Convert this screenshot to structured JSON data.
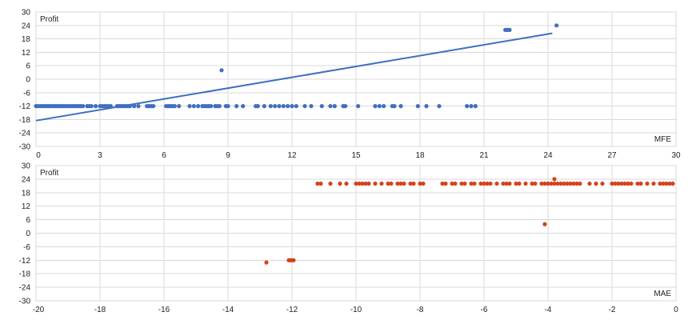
{
  "chart_data": [
    {
      "type": "scatter",
      "title": "",
      "ylabel": "Profit",
      "xlabel": "MFE",
      "xlim": [
        0,
        30
      ],
      "ylim": [
        -30,
        30
      ],
      "x_ticks": [
        "0",
        "3",
        "6",
        "9",
        "12",
        "15",
        "18",
        "21",
        "24",
        "27",
        "30"
      ],
      "y_ticks": [
        "30",
        "24",
        "18",
        "12",
        "6",
        "0",
        "-6",
        "-12",
        "-18",
        "-24",
        "-30"
      ],
      "grid": true,
      "legend": "none",
      "series": [
        {
          "color": "#3f6fc0",
          "points": [
            [
              0.0,
              -12
            ],
            [
              0.1,
              -12
            ],
            [
              0.2,
              -12
            ],
            [
              0.3,
              -12
            ],
            [
              0.4,
              -12
            ],
            [
              0.5,
              -12
            ],
            [
              0.6,
              -12
            ],
            [
              0.7,
              -12
            ],
            [
              0.8,
              -12
            ],
            [
              0.9,
              -12
            ],
            [
              1.0,
              -12
            ],
            [
              1.1,
              -12
            ],
            [
              1.2,
              -12
            ],
            [
              1.3,
              -12
            ],
            [
              1.4,
              -12
            ],
            [
              1.5,
              -12
            ],
            [
              1.6,
              -12
            ],
            [
              1.7,
              -12
            ],
            [
              1.8,
              -12
            ],
            [
              1.9,
              -12
            ],
            [
              2.0,
              -12
            ],
            [
              2.1,
              -12
            ],
            [
              2.2,
              -12
            ],
            [
              2.4,
              -12
            ],
            [
              2.5,
              -12
            ],
            [
              2.6,
              -12
            ],
            [
              2.8,
              -12
            ],
            [
              3.0,
              -12
            ],
            [
              3.1,
              -12
            ],
            [
              3.2,
              -12
            ],
            [
              3.3,
              -12
            ],
            [
              3.4,
              -12
            ],
            [
              3.5,
              -12
            ],
            [
              3.8,
              -12
            ],
            [
              3.9,
              -12
            ],
            [
              4.0,
              -12
            ],
            [
              4.1,
              -12
            ],
            [
              4.2,
              -12
            ],
            [
              4.3,
              -12
            ],
            [
              4.4,
              -12
            ],
            [
              4.6,
              -12
            ],
            [
              4.8,
              -12
            ],
            [
              5.2,
              -12
            ],
            [
              5.3,
              -12
            ],
            [
              5.4,
              -12
            ],
            [
              5.5,
              -12
            ],
            [
              6.1,
              -12
            ],
            [
              6.2,
              -12
            ],
            [
              6.3,
              -12
            ],
            [
              6.4,
              -12
            ],
            [
              6.5,
              -12
            ],
            [
              6.7,
              -12
            ],
            [
              7.2,
              -12
            ],
            [
              7.4,
              -12
            ],
            [
              7.6,
              -12
            ],
            [
              7.8,
              -12
            ],
            [
              7.9,
              -12
            ],
            [
              8.0,
              -12
            ],
            [
              8.1,
              -12
            ],
            [
              8.2,
              -12
            ],
            [
              8.4,
              -12
            ],
            [
              8.5,
              -12
            ],
            [
              8.6,
              -12
            ],
            [
              8.9,
              -12
            ],
            [
              9.0,
              -12
            ],
            [
              9.4,
              -12
            ],
            [
              9.7,
              -12
            ],
            [
              10.3,
              -12
            ],
            [
              10.4,
              -12
            ],
            [
              10.7,
              -12
            ],
            [
              11.0,
              -12
            ],
            [
              11.2,
              -12
            ],
            [
              11.4,
              -12
            ],
            [
              11.6,
              -12
            ],
            [
              11.8,
              -12
            ],
            [
              12.0,
              -12
            ],
            [
              12.2,
              -12
            ],
            [
              12.6,
              -12
            ],
            [
              12.9,
              -12
            ],
            [
              13.4,
              -12
            ],
            [
              13.8,
              -12
            ],
            [
              14.0,
              -12
            ],
            [
              14.4,
              -12
            ],
            [
              14.5,
              -12
            ],
            [
              15.1,
              -12
            ],
            [
              15.9,
              -12
            ],
            [
              16.1,
              -12
            ],
            [
              16.3,
              -12
            ],
            [
              16.7,
              -12
            ],
            [
              16.8,
              -12
            ],
            [
              17.1,
              -12
            ],
            [
              17.9,
              -12
            ],
            [
              18.3,
              -12
            ],
            [
              18.9,
              -12
            ],
            [
              20.2,
              -12
            ],
            [
              20.4,
              -12
            ],
            [
              20.6,
              -12
            ],
            [
              8.7,
              4
            ],
            [
              22.0,
              22
            ],
            [
              22.1,
              22
            ],
            [
              22.2,
              22
            ],
            [
              24.4,
              24
            ]
          ]
        }
      ],
      "trendline": {
        "x": [
          0,
          24.2
        ],
        "y": [
          -18.5,
          20.5
        ]
      }
    },
    {
      "type": "scatter",
      "title": "",
      "ylabel": "Profit",
      "xlabel": "MAE",
      "xlim": [
        -20,
        0
      ],
      "ylim": [
        -30,
        30
      ],
      "x_ticks": [
        "-20",
        "-18",
        "-16",
        "-14",
        "-12",
        "-10",
        "-8",
        "-6",
        "-4",
        "-2",
        "0"
      ],
      "y_ticks": [
        "30",
        "24",
        "18",
        "12",
        "6",
        "0",
        "-6",
        "-12",
        "-18",
        "-24",
        "-30"
      ],
      "grid": true,
      "legend": "none",
      "series": [
        {
          "color": "#d4421c",
          "points": [
            [
              -12.8,
              -13
            ],
            [
              -12.1,
              -12
            ],
            [
              -12.05,
              -12
            ],
            [
              -12.0,
              -12
            ],
            [
              -11.95,
              -12
            ],
            [
              -4.1,
              4
            ],
            [
              -3.8,
              24
            ],
            [
              -11.2,
              22
            ],
            [
              -11.1,
              22
            ],
            [
              -10.8,
              22
            ],
            [
              -10.5,
              22
            ],
            [
              -10.3,
              22
            ],
            [
              -10.0,
              22
            ],
            [
              -9.9,
              22
            ],
            [
              -9.8,
              22
            ],
            [
              -9.7,
              22
            ],
            [
              -9.6,
              22
            ],
            [
              -9.4,
              22
            ],
            [
              -9.2,
              22
            ],
            [
              -9.0,
              22
            ],
            [
              -8.9,
              22
            ],
            [
              -8.7,
              22
            ],
            [
              -8.6,
              22
            ],
            [
              -8.5,
              22
            ],
            [
              -8.3,
              22
            ],
            [
              -8.2,
              22
            ],
            [
              -8.0,
              22
            ],
            [
              -7.9,
              22
            ],
            [
              -7.3,
              22
            ],
            [
              -7.2,
              22
            ],
            [
              -7.0,
              22
            ],
            [
              -6.9,
              22
            ],
            [
              -6.7,
              22
            ],
            [
              -6.6,
              22
            ],
            [
              -6.4,
              22
            ],
            [
              -6.3,
              22
            ],
            [
              -6.1,
              22
            ],
            [
              -6.0,
              22
            ],
            [
              -5.9,
              22
            ],
            [
              -5.8,
              22
            ],
            [
              -5.6,
              22
            ],
            [
              -5.4,
              22
            ],
            [
              -5.3,
              22
            ],
            [
              -5.2,
              22
            ],
            [
              -5.0,
              22
            ],
            [
              -4.9,
              22
            ],
            [
              -4.7,
              22
            ],
            [
              -4.5,
              22
            ],
            [
              -4.4,
              22
            ],
            [
              -4.2,
              22
            ],
            [
              -4.1,
              22
            ],
            [
              -4.0,
              22
            ],
            [
              -3.9,
              22
            ],
            [
              -3.8,
              22
            ],
            [
              -3.7,
              22
            ],
            [
              -3.6,
              22
            ],
            [
              -3.5,
              22
            ],
            [
              -3.4,
              22
            ],
            [
              -3.3,
              22
            ],
            [
              -3.2,
              22
            ],
            [
              -3.1,
              22
            ],
            [
              -3.0,
              22
            ],
            [
              -2.7,
              22
            ],
            [
              -2.5,
              22
            ],
            [
              -2.3,
              22
            ],
            [
              -2.0,
              22
            ],
            [
              -1.9,
              22
            ],
            [
              -1.8,
              22
            ],
            [
              -1.7,
              22
            ],
            [
              -1.6,
              22
            ],
            [
              -1.5,
              22
            ],
            [
              -1.4,
              22
            ],
            [
              -1.2,
              22
            ],
            [
              -1.1,
              22
            ],
            [
              -0.9,
              22
            ],
            [
              -0.7,
              22
            ],
            [
              -0.5,
              22
            ],
            [
              -0.4,
              22
            ],
            [
              -0.3,
              22
            ],
            [
              -0.2,
              22
            ],
            [
              -0.1,
              22
            ]
          ]
        }
      ]
    }
  ]
}
